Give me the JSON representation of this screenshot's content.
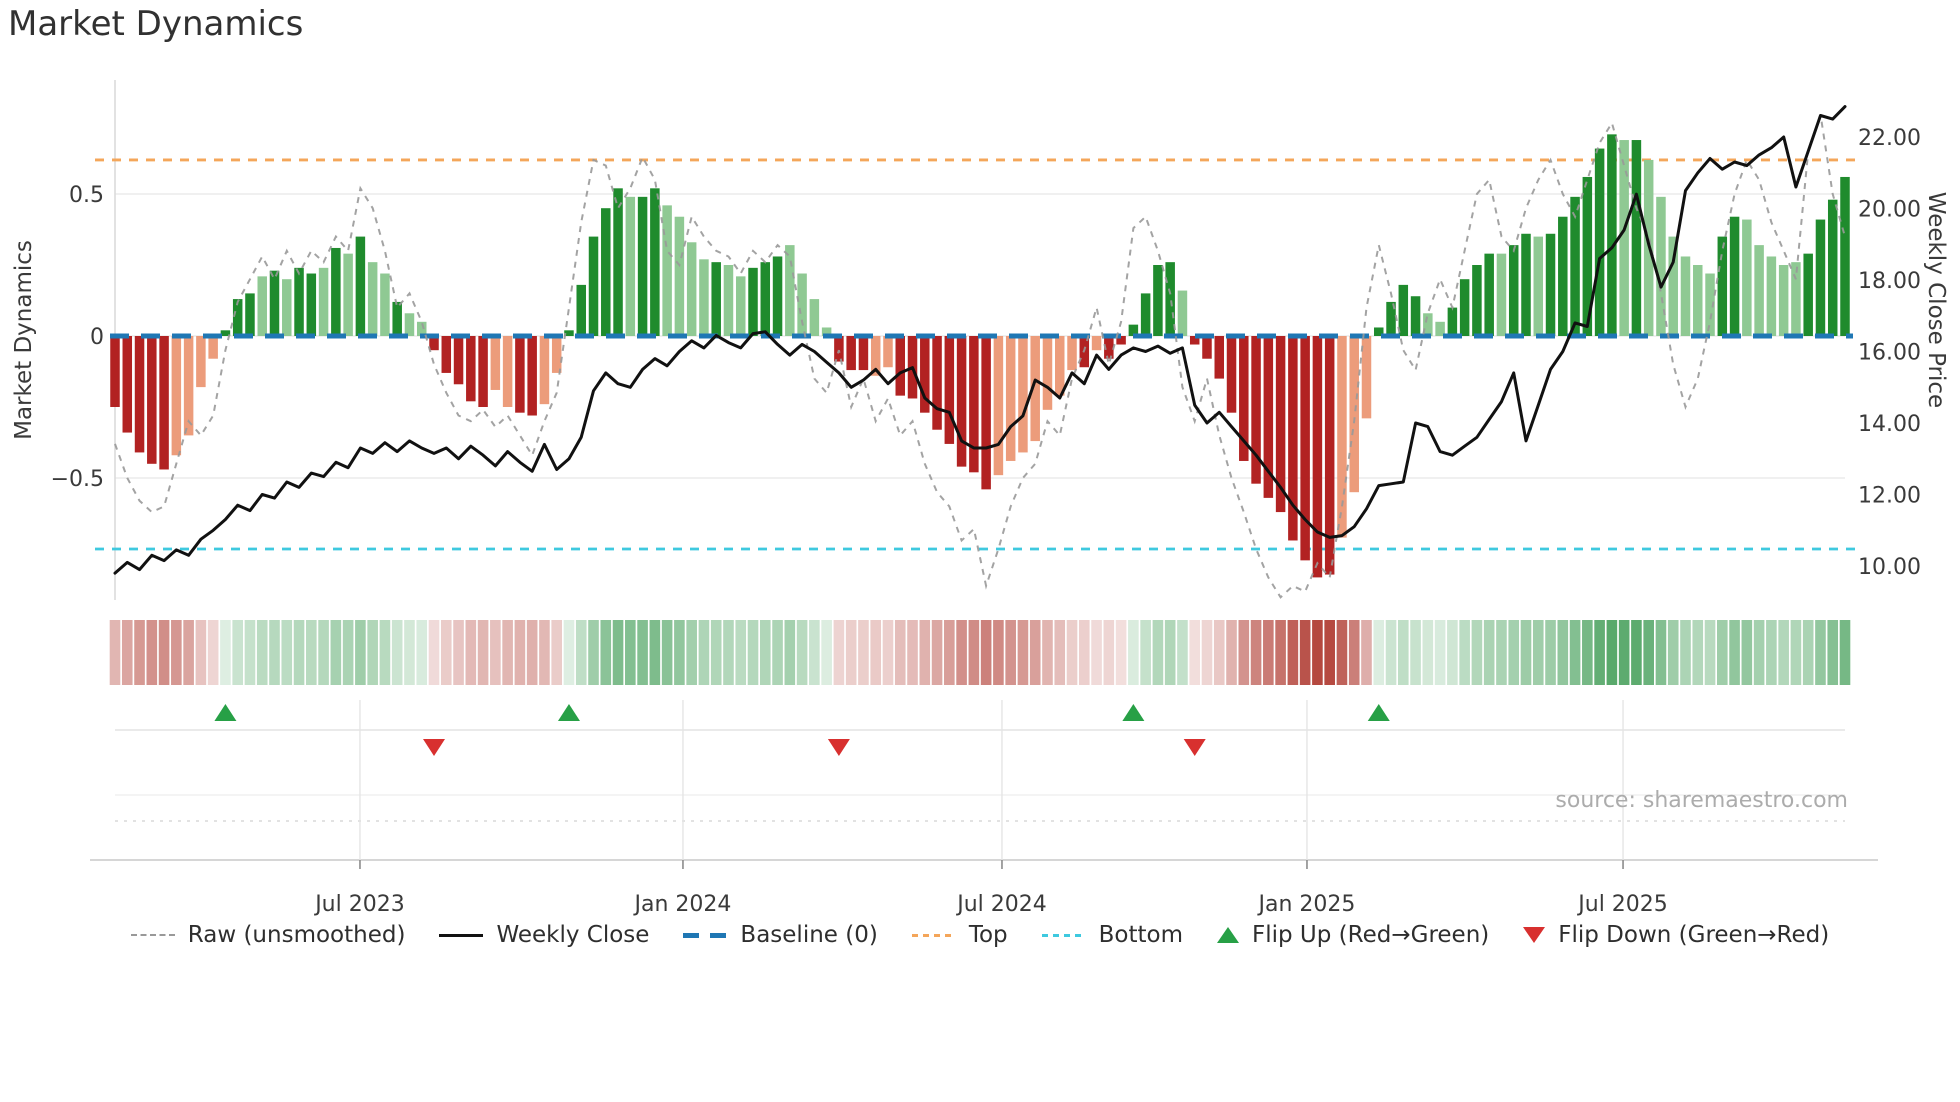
{
  "title": "Market Dynamics",
  "source_text": "source: sharemaestro.com",
  "axes": {
    "left_label": "Market Dynamics",
    "right_label": "Weekly Close Price",
    "left_ticks": [
      {
        "label": "0.5",
        "value": 0.5
      },
      {
        "label": "0",
        "value": 0
      },
      {
        "label": "−0.5",
        "value": -0.5
      }
    ],
    "right_ticks": [
      {
        "label": "22.00",
        "value": 22
      },
      {
        "label": "20.00",
        "value": 20
      },
      {
        "label": "18.00",
        "value": 18
      },
      {
        "label": "16.00",
        "value": 16
      },
      {
        "label": "14.00",
        "value": 14
      },
      {
        "label": "12.00",
        "value": 12
      },
      {
        "label": "10.00",
        "value": 10
      }
    ],
    "x_ticks": [
      {
        "label": "Jul 2023",
        "pos": 0.1416
      },
      {
        "label": "Jan 2024",
        "pos": 0.3283
      },
      {
        "label": "Jul 2024",
        "pos": 0.5127
      },
      {
        "label": "Jan 2025",
        "pos": 0.689
      },
      {
        "label": "Jul 2025",
        "pos": 0.8717
      }
    ]
  },
  "legend": {
    "items": [
      {
        "label": "Raw (unsmoothed)"
      },
      {
        "label": "Weekly Close"
      },
      {
        "label": "Baseline (0)"
      },
      {
        "label": "Top"
      },
      {
        "label": "Bottom"
      },
      {
        "label": "Flip Up (Red→Green)"
      },
      {
        "label": "Flip Down (Green→Red)"
      }
    ]
  },
  "colors": {
    "bar_green_strong": "#1F8B2D",
    "bar_green_soft": "#8FC993",
    "bar_red_strong": "#B22222",
    "bar_red_soft": "#EC9C7B",
    "baseline_blue": "#1F77B4",
    "top_orange": "#F4A65A",
    "bottom_cyan": "#3EC9DF",
    "raw_gray": "#999999",
    "price_black": "#111111",
    "flip_up_green": "#27A046",
    "flip_down_red": "#D8302F",
    "heat_green": "#3E9B53",
    "heat_red": "#B5483F",
    "grid": "#EBEBEB",
    "spine": "#DBDBDB",
    "tick_text": "#3A3A3A"
  },
  "chart_data": {
    "type": "bar",
    "subtype": "weekly oscillator bars + raw dashed line (left axis) + weekly close price line (right axis) + signal heatmap strip + flip markers",
    "title": "Market Dynamics",
    "ylabel": "Market Dynamics",
    "ylabel_right": "Weekly Close Price",
    "baseline": 0,
    "top_threshold": 0.62,
    "bottom_threshold": -0.75,
    "osc_ylim": [
      -0.93,
      0.9
    ],
    "price_ylim": [
      9.05,
      23.62
    ],
    "x_tick_labels": [
      "Jul 2023",
      "Jan 2024",
      "Jul 2024",
      "Jan 2025",
      "Jul 2025"
    ],
    "bars": {
      "values": [
        -0.25,
        -0.34,
        -0.41,
        -0.45,
        -0.47,
        -0.42,
        -0.35,
        -0.18,
        -0.08,
        0.02,
        0.13,
        0.15,
        0.21,
        0.23,
        0.2,
        0.24,
        0.22,
        0.24,
        0.31,
        0.29,
        0.35,
        0.26,
        0.22,
        0.12,
        0.08,
        0.05,
        -0.05,
        -0.13,
        -0.17,
        -0.23,
        -0.25,
        -0.19,
        -0.25,
        -0.27,
        -0.28,
        -0.24,
        -0.13,
        0.02,
        0.18,
        0.35,
        0.45,
        0.52,
        0.49,
        0.49,
        0.52,
        0.46,
        0.42,
        0.33,
        0.27,
        0.26,
        0.25,
        0.21,
        0.24,
        0.26,
        0.28,
        0.32,
        0.22,
        0.13,
        0.03,
        -0.09,
        -0.12,
        -0.12,
        -0.14,
        -0.11,
        -0.21,
        -0.22,
        -0.27,
        -0.33,
        -0.38,
        -0.46,
        -0.48,
        -0.54,
        -0.49,
        -0.44,
        -0.41,
        -0.37,
        -0.26,
        -0.21,
        -0.12,
        -0.11,
        -0.05,
        -0.08,
        -0.03,
        0.04,
        0.15,
        0.25,
        0.26,
        0.16,
        -0.03,
        -0.08,
        -0.15,
        -0.27,
        -0.44,
        -0.52,
        -0.57,
        -0.62,
        -0.72,
        -0.79,
        -0.85,
        -0.84,
        -0.71,
        -0.55,
        -0.29,
        0.03,
        0.12,
        0.18,
        0.14,
        0.08,
        0.05,
        0.1,
        0.2,
        0.25,
        0.29,
        0.29,
        0.32,
        0.36,
        0.35,
        0.36,
        0.42,
        0.49,
        0.56,
        0.66,
        0.71,
        0.69,
        0.69,
        0.62,
        0.49,
        0.35,
        0.28,
        0.25,
        0.22,
        0.35,
        0.42,
        0.41,
        0.32,
        0.28,
        0.25,
        0.26,
        0.29,
        0.41,
        0.48,
        0.56
      ],
      "strong": [
        1,
        1,
        1,
        1,
        1,
        0,
        0,
        0,
        0,
        1,
        1,
        1,
        0,
        1,
        0,
        1,
        1,
        0,
        1,
        0,
        1,
        0,
        0,
        1,
        0,
        0,
        1,
        1,
        1,
        1,
        1,
        0,
        0,
        1,
        1,
        0,
        0,
        1,
        1,
        1,
        1,
        1,
        0,
        1,
        1,
        0,
        0,
        0,
        0,
        1,
        0,
        0,
        1,
        1,
        1,
        0,
        0,
        0,
        0,
        1,
        1,
        1,
        0,
        0,
        1,
        1,
        1,
        1,
        1,
        1,
        1,
        1,
        0,
        0,
        0,
        0,
        0,
        0,
        0,
        1,
        0,
        1,
        1,
        1,
        1,
        1,
        1,
        0,
        1,
        1,
        1,
        1,
        1,
        1,
        1,
        1,
        1,
        1,
        1,
        1,
        0,
        0,
        0,
        1,
        1,
        1,
        1,
        0,
        0,
        1,
        1,
        1,
        1,
        0,
        1,
        1,
        0,
        1,
        1,
        1,
        1,
        1,
        1,
        0,
        1,
        0,
        0,
        0,
        0,
        0,
        0,
        1,
        1,
        0,
        0,
        0,
        0,
        0,
        1,
        1,
        1,
        1
      ]
    },
    "raw": [
      -0.38,
      -0.5,
      -0.58,
      -0.62,
      -0.6,
      -0.45,
      -0.3,
      -0.35,
      -0.28,
      -0.05,
      0.12,
      0.2,
      0.28,
      0.2,
      0.3,
      0.22,
      0.3,
      0.26,
      0.35,
      0.3,
      0.52,
      0.45,
      0.3,
      0.1,
      0.15,
      0.05,
      -0.1,
      -0.2,
      -0.28,
      -0.3,
      -0.26,
      -0.32,
      -0.28,
      -0.35,
      -0.42,
      -0.3,
      -0.2,
      0.1,
      0.4,
      0.62,
      0.6,
      0.45,
      0.52,
      0.63,
      0.55,
      0.3,
      0.25,
      0.42,
      0.35,
      0.3,
      0.28,
      0.22,
      0.3,
      0.26,
      0.32,
      0.28,
      0.05,
      -0.15,
      -0.2,
      -0.05,
      -0.25,
      -0.15,
      -0.3,
      -0.22,
      -0.35,
      -0.3,
      -0.45,
      -0.55,
      -0.6,
      -0.72,
      -0.68,
      -0.88,
      -0.75,
      -0.6,
      -0.5,
      -0.45,
      -0.3,
      -0.35,
      -0.15,
      -0.05,
      0.1,
      -0.1,
      0.05,
      0.38,
      0.42,
      0.3,
      0.15,
      -0.18,
      -0.3,
      -0.15,
      -0.35,
      -0.5,
      -0.62,
      -0.75,
      -0.85,
      -0.92,
      -0.88,
      -0.9,
      -0.8,
      -0.85,
      -0.6,
      -0.3,
      0.1,
      0.32,
      0.15,
      -0.05,
      -0.12,
      0.08,
      0.2,
      0.1,
      0.3,
      0.5,
      0.55,
      0.35,
      0.3,
      0.45,
      0.55,
      0.62,
      0.5,
      0.42,
      0.55,
      0.68,
      0.75,
      0.6,
      0.45,
      0.35,
      0.15,
      -0.1,
      -0.25,
      -0.15,
      0.05,
      0.3,
      0.5,
      0.62,
      0.55,
      0.4,
      0.3,
      0.2,
      0.65,
      0.78,
      0.5,
      0.35
    ],
    "price": [
      9.8,
      10.1,
      9.9,
      10.3,
      10.15,
      10.45,
      10.3,
      10.75,
      11.0,
      11.3,
      11.7,
      11.55,
      12.0,
      11.9,
      12.35,
      12.2,
      12.6,
      12.5,
      12.9,
      12.75,
      13.3,
      13.15,
      13.45,
      13.2,
      13.5,
      13.3,
      13.15,
      13.3,
      13.0,
      13.35,
      13.1,
      12.8,
      13.2,
      12.9,
      12.65,
      13.4,
      12.7,
      13.0,
      13.6,
      14.9,
      15.4,
      15.1,
      15.0,
      15.5,
      15.8,
      15.6,
      16.0,
      16.3,
      16.1,
      16.45,
      16.25,
      16.1,
      16.5,
      16.55,
      16.2,
      15.9,
      16.2,
      16.0,
      15.7,
      15.4,
      15.0,
      15.2,
      15.5,
      15.1,
      15.4,
      15.55,
      14.7,
      14.4,
      14.3,
      13.5,
      13.3,
      13.3,
      13.4,
      13.9,
      14.2,
      15.2,
      15.0,
      14.7,
      15.4,
      15.1,
      15.9,
      15.5,
      15.9,
      16.1,
      16.0,
      16.15,
      15.95,
      16.1,
      14.5,
      14.0,
      14.3,
      13.9,
      13.5,
      13.1,
      12.65,
      12.2,
      11.7,
      11.3,
      10.95,
      10.8,
      10.85,
      11.1,
      11.6,
      12.25,
      12.3,
      12.35,
      14.0,
      13.9,
      13.2,
      13.1,
      13.35,
      13.6,
      14.1,
      14.6,
      15.4,
      13.5,
      14.5,
      15.5,
      16.0,
      16.8,
      16.7,
      18.6,
      18.9,
      19.4,
      20.4,
      19.0,
      17.8,
      18.5,
      20.5,
      21.0,
      21.4,
      21.1,
      21.3,
      21.2,
      21.5,
      21.7,
      22.0,
      20.6,
      21.6,
      22.6,
      22.5,
      22.85
    ],
    "flips": [
      {
        "week": 9,
        "dir": "up"
      },
      {
        "week": 26,
        "dir": "down"
      },
      {
        "week": 37,
        "dir": "up"
      },
      {
        "week": 59,
        "dir": "down"
      },
      {
        "week": 83,
        "dir": "up"
      },
      {
        "week": 88,
        "dir": "down"
      },
      {
        "week": 103,
        "dir": "up"
      }
    ]
  }
}
